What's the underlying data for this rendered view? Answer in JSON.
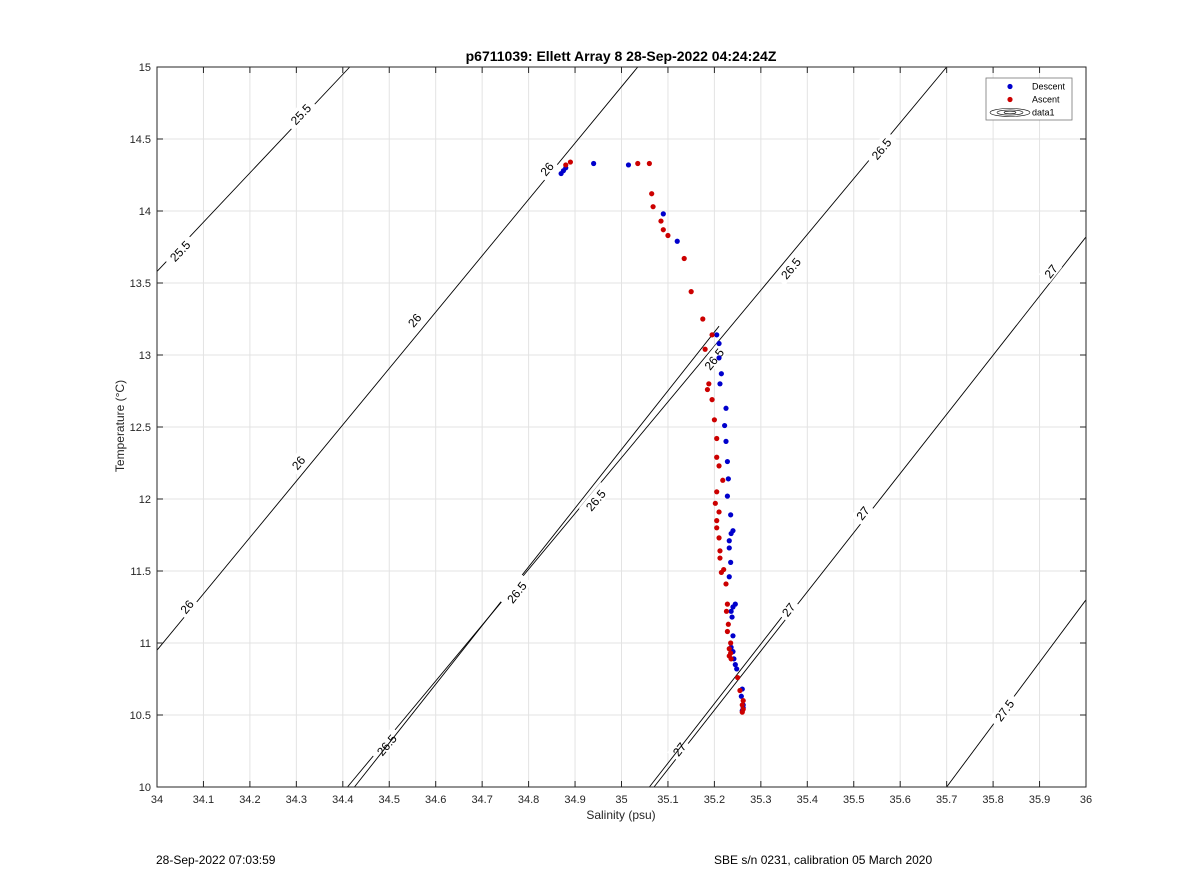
{
  "chart_data": {
    "type": "scatter",
    "title": "p6711039: Ellett Array 8 28-Sep-2022 04:24:24Z",
    "xlabel": "Salinity (psu)",
    "ylabel": "Temperature (°C)",
    "xlim": [
      34,
      36
    ],
    "ylim": [
      10,
      15
    ],
    "x_ticks": [
      "34",
      "34.1",
      "34.2",
      "34.3",
      "34.4",
      "34.5",
      "34.6",
      "34.7",
      "34.8",
      "34.9",
      "35",
      "35.1",
      "35.2",
      "35.3",
      "35.4",
      "35.5",
      "35.6",
      "35.7",
      "35.8",
      "35.9",
      "36"
    ],
    "y_ticks": [
      "10",
      "10.5",
      "11",
      "11.5",
      "12",
      "12.5",
      "13",
      "13.5",
      "14",
      "14.5",
      "15"
    ],
    "grid": true,
    "legend_position": "top-right",
    "legend": [
      "Descent",
      "Ascent",
      "data1"
    ],
    "series": [
      {
        "name": "Descent",
        "color": "#0000cc",
        "points": [
          [
            34.87,
            14.26
          ],
          [
            34.875,
            14.28
          ],
          [
            34.88,
            14.3
          ],
          [
            34.94,
            14.33
          ],
          [
            35.015,
            14.32
          ],
          [
            35.09,
            13.98
          ],
          [
            35.12,
            13.79
          ],
          [
            35.205,
            13.14
          ],
          [
            35.21,
            13.08
          ],
          [
            35.21,
            12.98
          ],
          [
            35.215,
            12.87
          ],
          [
            35.212,
            12.8
          ],
          [
            35.225,
            12.63
          ],
          [
            35.222,
            12.51
          ],
          [
            35.225,
            12.4
          ],
          [
            35.228,
            12.26
          ],
          [
            35.23,
            12.14
          ],
          [
            35.228,
            12.02
          ],
          [
            35.235,
            11.89
          ],
          [
            35.24,
            11.78
          ],
          [
            35.236,
            11.76
          ],
          [
            35.232,
            11.71
          ],
          [
            35.232,
            11.66
          ],
          [
            35.235,
            11.56
          ],
          [
            35.232,
            11.46
          ],
          [
            35.245,
            11.27
          ],
          [
            35.24,
            11.25
          ],
          [
            35.236,
            11.22
          ],
          [
            35.238,
            11.18
          ],
          [
            35.24,
            11.05
          ],
          [
            35.236,
            10.97
          ],
          [
            35.24,
            10.94
          ],
          [
            35.242,
            10.89
          ],
          [
            35.245,
            10.85
          ],
          [
            35.248,
            10.82
          ],
          [
            35.26,
            10.68
          ],
          [
            35.258,
            10.63
          ],
          [
            35.262,
            10.57
          ],
          [
            35.262,
            10.55
          ],
          [
            35.26,
            10.53
          ]
        ]
      },
      {
        "name": "Ascent",
        "color": "#cc0000",
        "points": [
          [
            34.88,
            14.32
          ],
          [
            34.89,
            14.34
          ],
          [
            35.035,
            14.33
          ],
          [
            35.06,
            14.33
          ],
          [
            35.065,
            14.12
          ],
          [
            35.068,
            14.03
          ],
          [
            35.085,
            13.93
          ],
          [
            35.09,
            13.87
          ],
          [
            35.1,
            13.83
          ],
          [
            35.135,
            13.67
          ],
          [
            35.15,
            13.44
          ],
          [
            35.175,
            13.25
          ],
          [
            35.18,
            13.04
          ],
          [
            35.195,
            13.14
          ],
          [
            35.188,
            12.8
          ],
          [
            35.185,
            12.76
          ],
          [
            35.195,
            12.69
          ],
          [
            35.2,
            12.55
          ],
          [
            35.205,
            12.42
          ],
          [
            35.205,
            12.29
          ],
          [
            35.21,
            12.23
          ],
          [
            35.218,
            12.13
          ],
          [
            35.205,
            12.05
          ],
          [
            35.202,
            11.97
          ],
          [
            35.21,
            11.91
          ],
          [
            35.205,
            11.85
          ],
          [
            35.205,
            11.8
          ],
          [
            35.21,
            11.73
          ],
          [
            35.212,
            11.64
          ],
          [
            35.212,
            11.59
          ],
          [
            35.22,
            11.51
          ],
          [
            35.215,
            11.49
          ],
          [
            35.225,
            11.41
          ],
          [
            35.228,
            11.27
          ],
          [
            35.226,
            11.22
          ],
          [
            35.23,
            11.13
          ],
          [
            35.228,
            11.08
          ],
          [
            35.235,
            11.0
          ],
          [
            35.232,
            10.96
          ],
          [
            35.235,
            10.93
          ],
          [
            35.232,
            10.91
          ],
          [
            35.236,
            10.89
          ],
          [
            35.25,
            10.76
          ],
          [
            35.255,
            10.67
          ],
          [
            35.262,
            10.6
          ],
          [
            35.26,
            10.57
          ],
          [
            35.262,
            10.54
          ],
          [
            35.26,
            10.52
          ]
        ]
      }
    ],
    "contours": [
      {
        "level": "25.5",
        "points": [
          [
            34,
            13.58
          ],
          [
            34.415,
            15
          ]
        ],
        "labels": [
          [
            34.05,
            13.72
          ],
          [
            34.31,
            14.67
          ]
        ]
      },
      {
        "level": "26",
        "points": [
          [
            34,
            10.95
          ],
          [
            35.035,
            15
          ]
        ],
        "labels": [
          [
            34.065,
            11.25
          ],
          [
            34.305,
            12.25
          ],
          [
            34.555,
            13.24
          ],
          [
            34.84,
            14.29
          ]
        ]
      },
      {
        "level": "26.5",
        "points": [
          [
            34.41,
            10
          ],
          [
            35.7,
            15
          ]
        ],
        "labels": [
          [
            34.495,
            10.29
          ],
          [
            34.945,
            11.99
          ],
          [
            35.365,
            13.6
          ],
          [
            35.56,
            14.43
          ]
        ]
      },
      {
        "level": "26.5",
        "points": [
          [
            34.425,
            10
          ],
          [
            35.21,
            13.2
          ]
        ],
        "labels": [
          [
            34.775,
            11.35
          ],
          [
            35.2,
            12.97
          ]
        ]
      },
      {
        "level": "27",
        "points": [
          [
            35.07,
            10
          ],
          [
            36,
            13.82
          ]
        ],
        "labels": [
          [
            35.125,
            10.26
          ],
          [
            35.52,
            11.9
          ],
          [
            35.925,
            13.58
          ]
        ]
      },
      {
        "level": "27",
        "points": [
          [
            35.06,
            10
          ],
          [
            35.35,
            11.2
          ]
        ],
        "labels": [
          [
            35.36,
            11.23
          ]
        ]
      },
      {
        "level": "27.5",
        "points": [
          [
            35.7,
            10
          ],
          [
            36,
            11.3
          ]
        ],
        "labels": [
          [
            35.825,
            10.53
          ]
        ]
      }
    ]
  },
  "legend_labels": {
    "descent": "Descent",
    "ascent": "Ascent",
    "data1": "data1"
  },
  "footer": {
    "left": "28-Sep-2022 07:03:59",
    "right": "SBE s/n 0231, calibration 05 March 2020"
  }
}
